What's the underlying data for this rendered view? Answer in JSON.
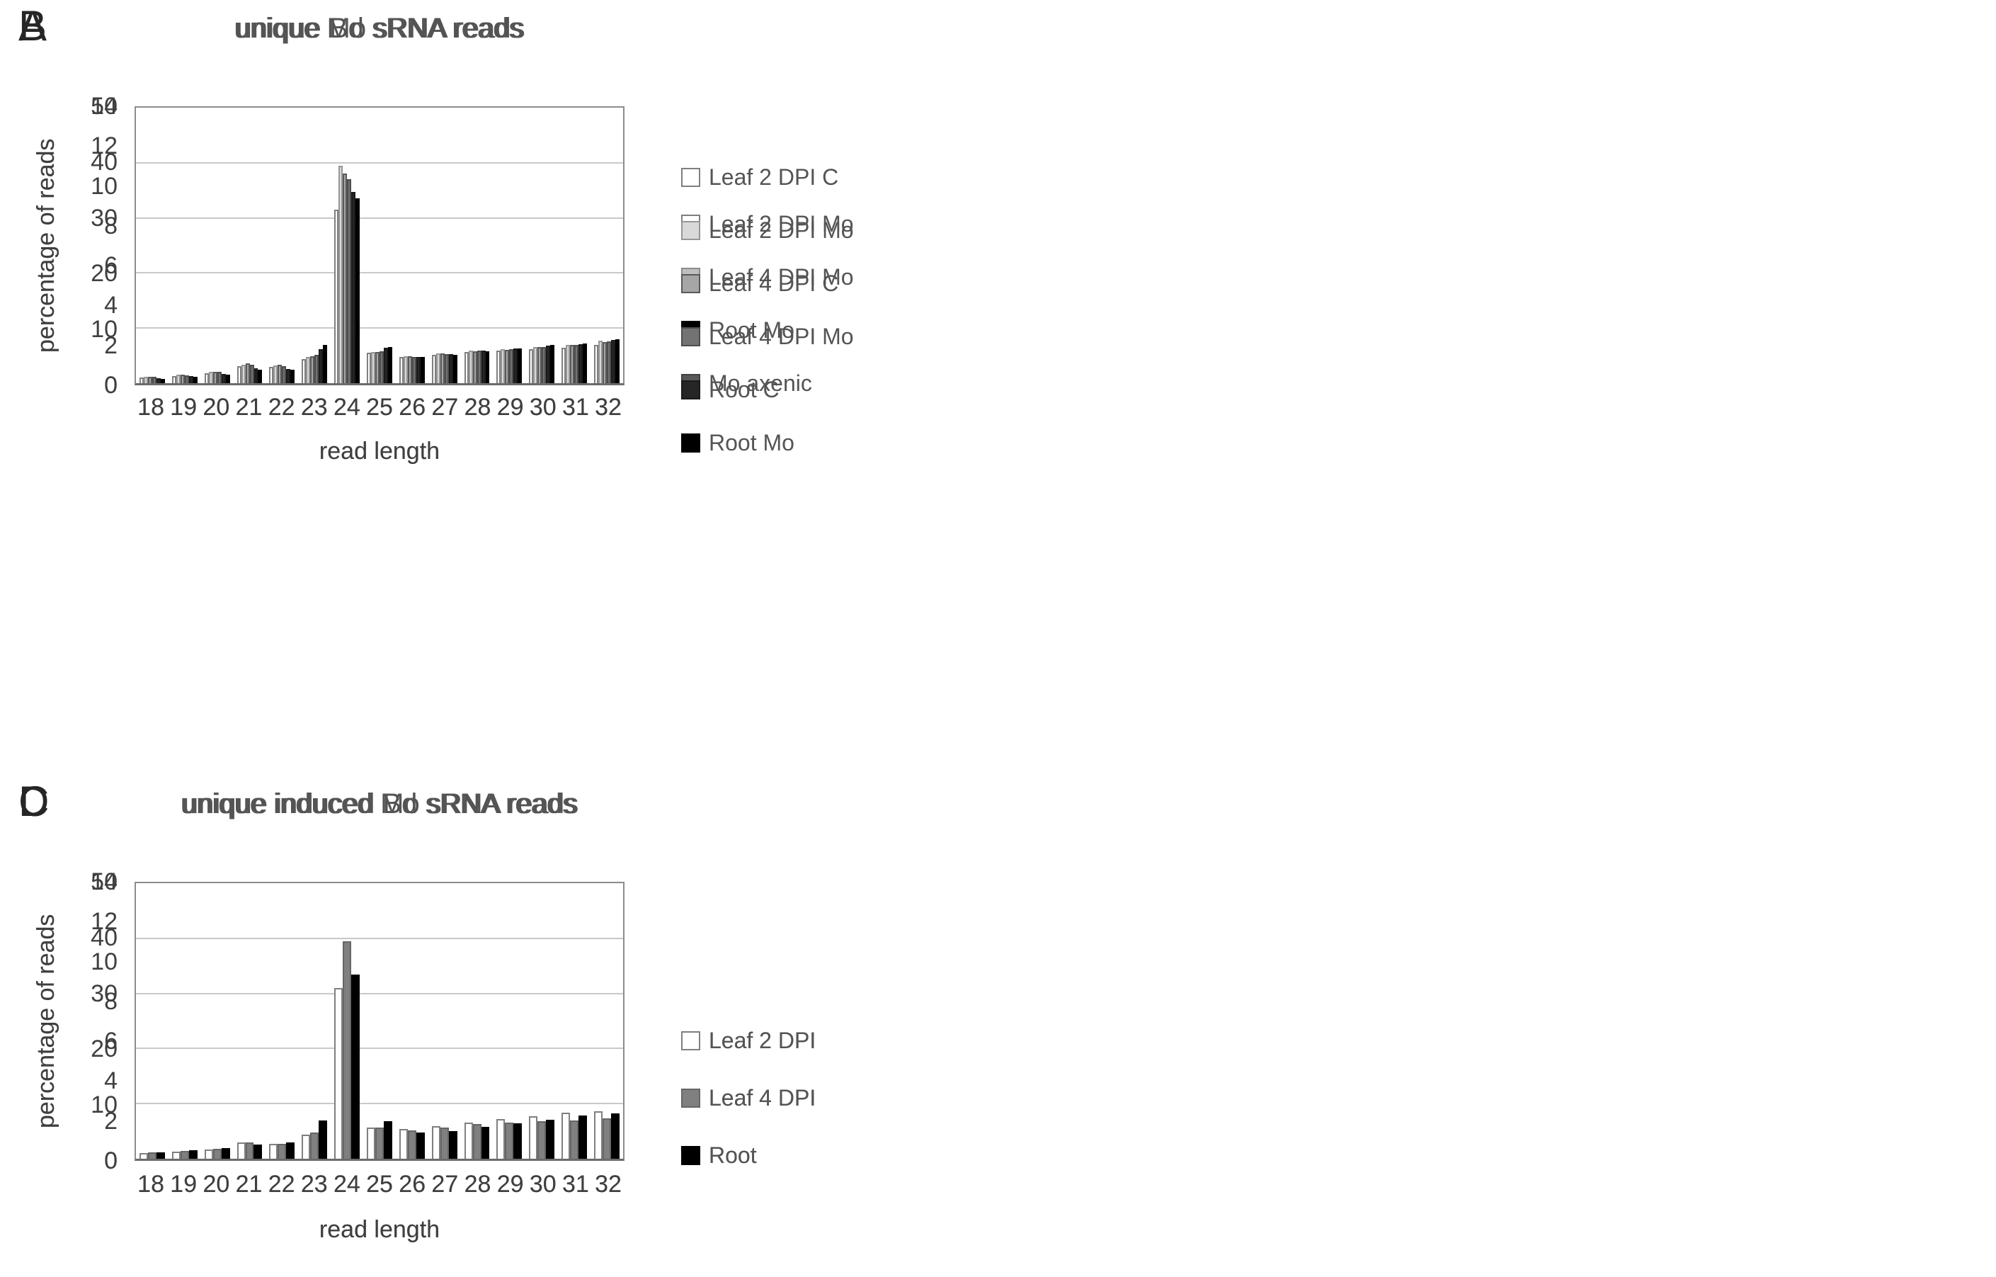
{
  "figure": {
    "background": "#ffffff",
    "grid": "2x2 scientific bar-chart panels"
  },
  "chart_data": [
    {
      "type": "bar",
      "panel_letter": "A",
      "title": "unique Mo sRNA reads",
      "xlabel": "read length",
      "ylabel": "percentage of reads",
      "ylim": [
        0,
        14
      ],
      "yticks": [
        0,
        2,
        4,
        6,
        8,
        10,
        12,
        14
      ],
      "grid": true,
      "legend_position": "right",
      "categories": [
        18,
        19,
        20,
        21,
        22,
        23,
        24,
        25,
        26,
        27,
        28,
        29,
        30,
        31,
        32
      ],
      "series": [
        {
          "name": "Leaf 2 DPI Mo",
          "color": "#ffffff",
          "border": "#7f7f7f",
          "values": [
            1.4,
            4.1,
            7.0,
            4.6,
            4.6,
            4.9,
            5.8,
            5.7,
            6.5,
            6.9,
            9.0,
            9.0,
            9.9,
            10.6,
            10.8
          ]
        },
        {
          "name": "Leaf 4 DPI Mo",
          "color": "#bfbfbf",
          "border": "#8c8c8c",
          "values": [
            1.9,
            5.3,
            7.0,
            5.1,
            4.4,
            4.9,
            5.0,
            5.6,
            6.3,
            7.5,
            8.1,
            9.1,
            9.4,
            10.3,
            10.9
          ]
        },
        {
          "name": "Root Mo",
          "color": "#000000",
          "border": "#000000",
          "values": [
            1.3,
            3.6,
            5.4,
            4.7,
            4.5,
            5.5,
            5.5,
            6.1,
            6.0,
            7.3,
            8.3,
            9.2,
            10.4,
            11.1,
            12.2
          ]
        },
        {
          "name": "Mo axenic",
          "color": "#595959",
          "border": "#404040",
          "values": [
            2.3,
            4.2,
            5.2,
            4.8,
            5.1,
            5.8,
            6.4,
            7.2,
            7.9,
            8.4,
            8.7,
            8.9,
            8.9,
            8.6,
            8.3
          ]
        }
      ]
    },
    {
      "type": "bar",
      "panel_letter": "B",
      "title": "unique Bd sRNA reads",
      "xlabel": "read length",
      "ylabel": "percentage of reads",
      "ylim": [
        0,
        50
      ],
      "yticks": [
        0,
        10,
        20,
        30,
        40,
        50
      ],
      "grid": true,
      "legend_position": "right",
      "categories": [
        18,
        19,
        20,
        21,
        22,
        23,
        24,
        25,
        26,
        27,
        28,
        29,
        30,
        31,
        32
      ],
      "series": [
        {
          "name": "Leaf 2 DPI C",
          "color": "#ffffff",
          "border": "#7f7f7f",
          "values": [
            1.0,
            1.3,
            1.8,
            3.1,
            3.0,
            4.4,
            31.5,
            5.5,
            4.8,
            5.2,
            5.6,
            5.9,
            6.2,
            6.4,
            6.9
          ]
        },
        {
          "name": "Leaf 2 DPI Mo",
          "color": "#d9d9d9",
          "border": "#969696",
          "values": [
            1.2,
            1.5,
            2.0,
            3.3,
            3.2,
            4.7,
            39.4,
            5.6,
            4.9,
            5.4,
            5.9,
            6.2,
            6.6,
            7.0,
            7.7
          ]
        },
        {
          "name": "Leaf 4 DPI C",
          "color": "#a6a6a6",
          "border": "#595959",
          "values": [
            1.2,
            1.5,
            2.1,
            3.6,
            3.3,
            4.9,
            38.1,
            5.7,
            4.9,
            5.4,
            5.8,
            6.1,
            6.5,
            6.9,
            7.5
          ]
        },
        {
          "name": "Leaf 4 DPI Mo",
          "color": "#737373",
          "border": "#4d4d4d",
          "values": [
            1.1,
            1.4,
            2.0,
            3.4,
            3.1,
            5.1,
            37.0,
            5.8,
            4.8,
            5.3,
            5.9,
            6.2,
            6.6,
            7.0,
            7.6
          ]
        },
        {
          "name": "Root C",
          "color": "#262626",
          "border": "#1a1a1a",
          "values": [
            0.9,
            1.3,
            1.7,
            2.7,
            2.6,
            6.2,
            34.7,
            6.4,
            4.8,
            5.3,
            5.9,
            6.3,
            6.8,
            7.1,
            7.8
          ]
        },
        {
          "name": "Root Mo",
          "color": "#000000",
          "border": "#000000",
          "values": [
            0.8,
            1.2,
            1.5,
            2.5,
            2.5,
            6.9,
            33.6,
            6.6,
            4.7,
            5.2,
            5.8,
            6.3,
            6.9,
            7.2,
            8.0
          ]
        }
      ]
    },
    {
      "type": "bar",
      "panel_letter": "C",
      "title": "unique induced Mo sRNA reads",
      "xlabel": "read length",
      "ylabel": "percentage of reads",
      "ylim": [
        0,
        14
      ],
      "yticks": [
        0,
        2,
        4,
        6,
        8,
        10,
        12,
        14
      ],
      "grid": true,
      "legend_position": "right",
      "categories": [
        18,
        19,
        20,
        21,
        22,
        23,
        24,
        25,
        26,
        27,
        28,
        29,
        30,
        31,
        32
      ],
      "series": [
        {
          "name": "Leaf 2 DPI",
          "color": "#ffffff",
          "border": "#7f7f7f",
          "values": [
            1.5,
            4.2,
            7.1,
            4.8,
            4.7,
            5.0,
            5.8,
            5.7,
            6.5,
            6.9,
            8.9,
            8.8,
            9.6,
            10.2,
            10.4
          ]
        },
        {
          "name": "Leaf 4 DPI",
          "color": "#808080",
          "border": "#666666",
          "values": [
            1.9,
            5.3,
            7.0,
            5.1,
            4.4,
            4.9,
            5.1,
            5.6,
            6.3,
            7.4,
            8.0,
            8.8,
            9.5,
            10.3,
            10.7
          ]
        },
        {
          "name": "Root",
          "color": "#000000",
          "border": "#000000",
          "values": [
            1.4,
            3.6,
            5.4,
            4.8,
            4.6,
            5.5,
            5.5,
            6.1,
            5.8,
            7.4,
            8.2,
            9.0,
            10.1,
            10.8,
            12.1
          ]
        }
      ]
    },
    {
      "type": "bar",
      "panel_letter": "D",
      "title": "unique induced Bd sRNA reads",
      "xlabel": "read length",
      "ylabel": "percentage of reads",
      "ylim": [
        0,
        50
      ],
      "yticks": [
        0,
        10,
        20,
        30,
        40,
        50
      ],
      "grid": true,
      "legend_position": "right",
      "categories": [
        18,
        19,
        20,
        21,
        22,
        23,
        24,
        25,
        26,
        27,
        28,
        29,
        30,
        31,
        32
      ],
      "series": [
        {
          "name": "Leaf 2 DPI",
          "color": "#ffffff",
          "border": "#7f7f7f",
          "values": [
            1.0,
            1.3,
            1.7,
            3.0,
            2.7,
            4.4,
            31.0,
            5.6,
            5.4,
            5.9,
            6.6,
            7.2,
            7.7,
            8.4,
            8.6
          ]
        },
        {
          "name": "Leaf 4 DPI",
          "color": "#808080",
          "border": "#666666",
          "values": [
            1.1,
            1.4,
            1.8,
            2.9,
            2.7,
            4.7,
            39.5,
            5.7,
            5.1,
            5.6,
            6.3,
            6.6,
            6.8,
            7.0,
            7.3
          ]
        },
        {
          "name": "Root",
          "color": "#000000",
          "border": "#000000",
          "values": [
            1.2,
            1.5,
            1.9,
            2.6,
            2.9,
            7.0,
            33.4,
            6.8,
            4.7,
            5.0,
            5.8,
            6.4,
            7.1,
            7.8,
            8.2
          ]
        }
      ]
    }
  ]
}
